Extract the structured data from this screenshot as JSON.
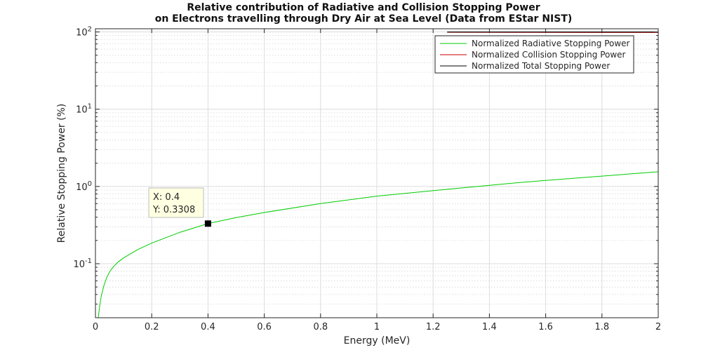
{
  "chart_data": {
    "type": "line",
    "title": [
      "Relative contribution of Radiative and Collision Stopping Power",
      "on Electrons travelling through Dry Air at Sea Level (Data from EStar NIST)"
    ],
    "xlabel": "Energy (MeV)",
    "ylabel": "Relative Stopping Power (%)",
    "xlim": [
      0,
      2
    ],
    "ylim": [
      0.02,
      110
    ],
    "yscale": "log",
    "grid": true,
    "minor_grid": true,
    "x_ticks": [
      "0",
      "0.2",
      "0.4",
      "0.6",
      "0.8",
      "1",
      "1.2",
      "1.4",
      "1.6",
      "1.8",
      "2"
    ],
    "y_ticks": [
      {
        "base": "10",
        "exp": "-1"
      },
      {
        "base": "10",
        "exp": "0"
      },
      {
        "base": "10",
        "exp": "1"
      },
      {
        "base": "10",
        "exp": "2"
      }
    ],
    "legend_position": "top-right",
    "series": [
      {
        "name": "Normalized Radiative Stopping Power",
        "color": "#00cc00",
        "x": [
          0.01,
          0.015,
          0.02,
          0.03,
          0.04,
          0.05,
          0.06,
          0.08,
          0.1,
          0.15,
          0.2,
          0.3,
          0.4,
          0.5,
          0.6,
          0.8,
          1.0,
          1.25,
          1.5,
          1.75,
          2.0
        ],
        "y": [
          0.02,
          0.028,
          0.037,
          0.052,
          0.066,
          0.078,
          0.088,
          0.105,
          0.119,
          0.152,
          0.185,
          0.255,
          0.3308,
          0.395,
          0.46,
          0.6,
          0.75,
          0.92,
          1.12,
          1.32,
          1.55
        ]
      },
      {
        "name": "Normalized Collision Stopping Power",
        "color": "#cc0000",
        "x": [
          1.25,
          1.5,
          1.75,
          2.0
        ],
        "y": [
          99.08,
          98.88,
          98.68,
          98.45
        ]
      },
      {
        "name": "Normalized Total Stopping Power",
        "color": "#000000",
        "x": [
          1.25,
          2.0
        ],
        "y": [
          100,
          100
        ]
      }
    ],
    "datatip": {
      "x": 0.4,
      "y": 0.3308,
      "x_label": "X: 0.4",
      "y_label": "Y: 0.3308"
    }
  }
}
